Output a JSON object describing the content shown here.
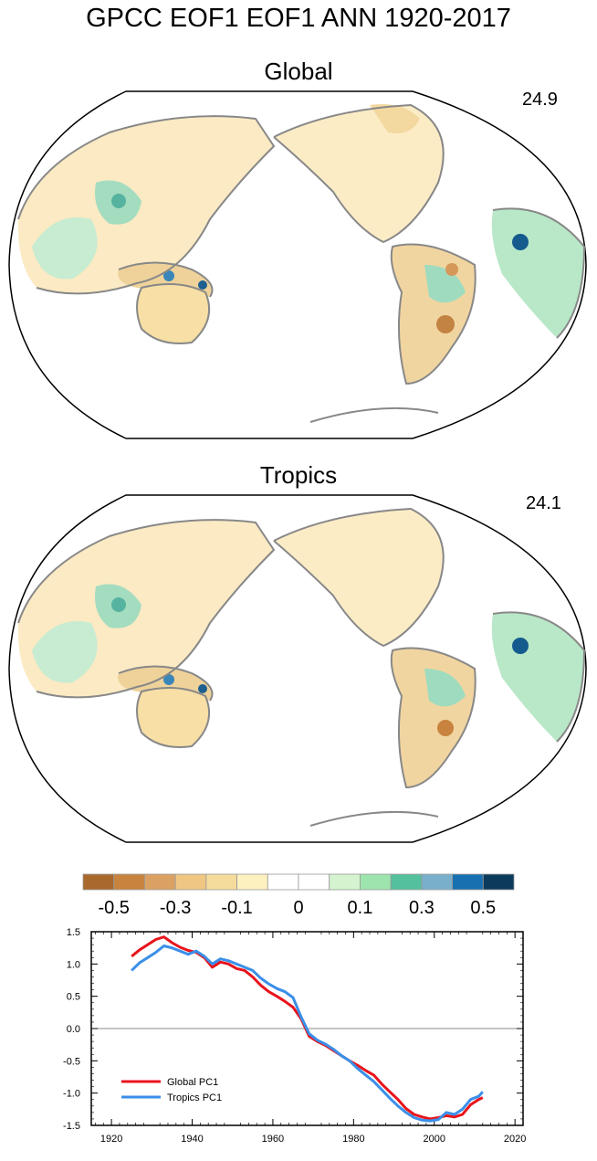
{
  "main_title": "GPCC EOF1 EOF1 ANN 1920-2017",
  "panels": [
    {
      "title": "Global",
      "pct": "24.9"
    },
    {
      "title": "Tropics",
      "pct": "24.1"
    }
  ],
  "colorbar": {
    "colors": [
      "#a9682c",
      "#c8843e",
      "#dba163",
      "#efc783",
      "#f6dc9c",
      "#fdf1c0",
      "#ffffff",
      "#ffffff",
      "#d4f3ce",
      "#9ee4ae",
      "#55c09d",
      "#79afcb",
      "#1770b0",
      "#0b3a5c"
    ],
    "labels": [
      "-0.5",
      "-0.3",
      "-0.1",
      "0",
      "0.1",
      "0.3",
      "0.5"
    ]
  },
  "chart_data": {
    "type": "line",
    "title": "",
    "xlabel": "",
    "ylabel": "",
    "xlim": [
      1915,
      2022
    ],
    "ylim": [
      -1.5,
      1.5
    ],
    "xticks": [
      1920,
      1940,
      1960,
      1980,
      2000,
      2020
    ],
    "yticks": [
      "1.5",
      "1.0",
      "0.5",
      "0.0",
      "-0.5",
      "-1.0",
      "-1.5"
    ],
    "zero_line": true,
    "legend_position": "bottom-left",
    "series": [
      {
        "name": "Global PC1",
        "color": "#e8141c",
        "x": [
          1925,
          1927,
          1929,
          1931,
          1933,
          1935,
          1937,
          1939,
          1941,
          1943,
          1945,
          1947,
          1949,
          1951,
          1953,
          1955,
          1957,
          1959,
          1961,
          1963,
          1965,
          1967,
          1969,
          1971,
          1973,
          1975,
          1977,
          1979,
          1981,
          1983,
          1985,
          1987,
          1989,
          1991,
          1993,
          1995,
          1997,
          1999,
          2001,
          2003,
          2005,
          2007,
          2009,
          2011,
          2012
        ],
        "values": [
          1.12,
          1.22,
          1.3,
          1.38,
          1.42,
          1.33,
          1.26,
          1.21,
          1.18,
          1.1,
          0.95,
          1.03,
          1.0,
          0.93,
          0.9,
          0.8,
          0.67,
          0.57,
          0.5,
          0.42,
          0.33,
          0.15,
          -0.12,
          -0.2,
          -0.26,
          -0.34,
          -0.42,
          -0.5,
          -0.57,
          -0.65,
          -0.72,
          -0.86,
          -0.98,
          -1.1,
          -1.24,
          -1.33,
          -1.37,
          -1.4,
          -1.38,
          -1.35,
          -1.37,
          -1.33,
          -1.18,
          -1.1,
          -1.07
        ]
      },
      {
        "name": "Tropics PC1",
        "color": "#3a8fe8",
        "x": [
          1925,
          1927,
          1929,
          1931,
          1933,
          1935,
          1937,
          1939,
          1941,
          1943,
          1945,
          1947,
          1949,
          1951,
          1953,
          1955,
          1957,
          1959,
          1961,
          1963,
          1965,
          1967,
          1969,
          1971,
          1973,
          1975,
          1977,
          1979,
          1981,
          1983,
          1985,
          1987,
          1989,
          1991,
          1993,
          1995,
          1997,
          1999,
          2001,
          2003,
          2005,
          2007,
          2009,
          2011,
          2012
        ],
        "values": [
          0.9,
          1.02,
          1.1,
          1.18,
          1.28,
          1.25,
          1.2,
          1.15,
          1.2,
          1.12,
          1.0,
          1.08,
          1.05,
          1.0,
          0.95,
          0.9,
          0.78,
          0.69,
          0.62,
          0.57,
          0.48,
          0.18,
          -0.08,
          -0.18,
          -0.24,
          -0.32,
          -0.42,
          -0.5,
          -0.62,
          -0.72,
          -0.82,
          -0.95,
          -1.08,
          -1.2,
          -1.3,
          -1.38,
          -1.42,
          -1.43,
          -1.41,
          -1.3,
          -1.33,
          -1.25,
          -1.1,
          -1.05,
          -0.98
        ]
      }
    ]
  }
}
